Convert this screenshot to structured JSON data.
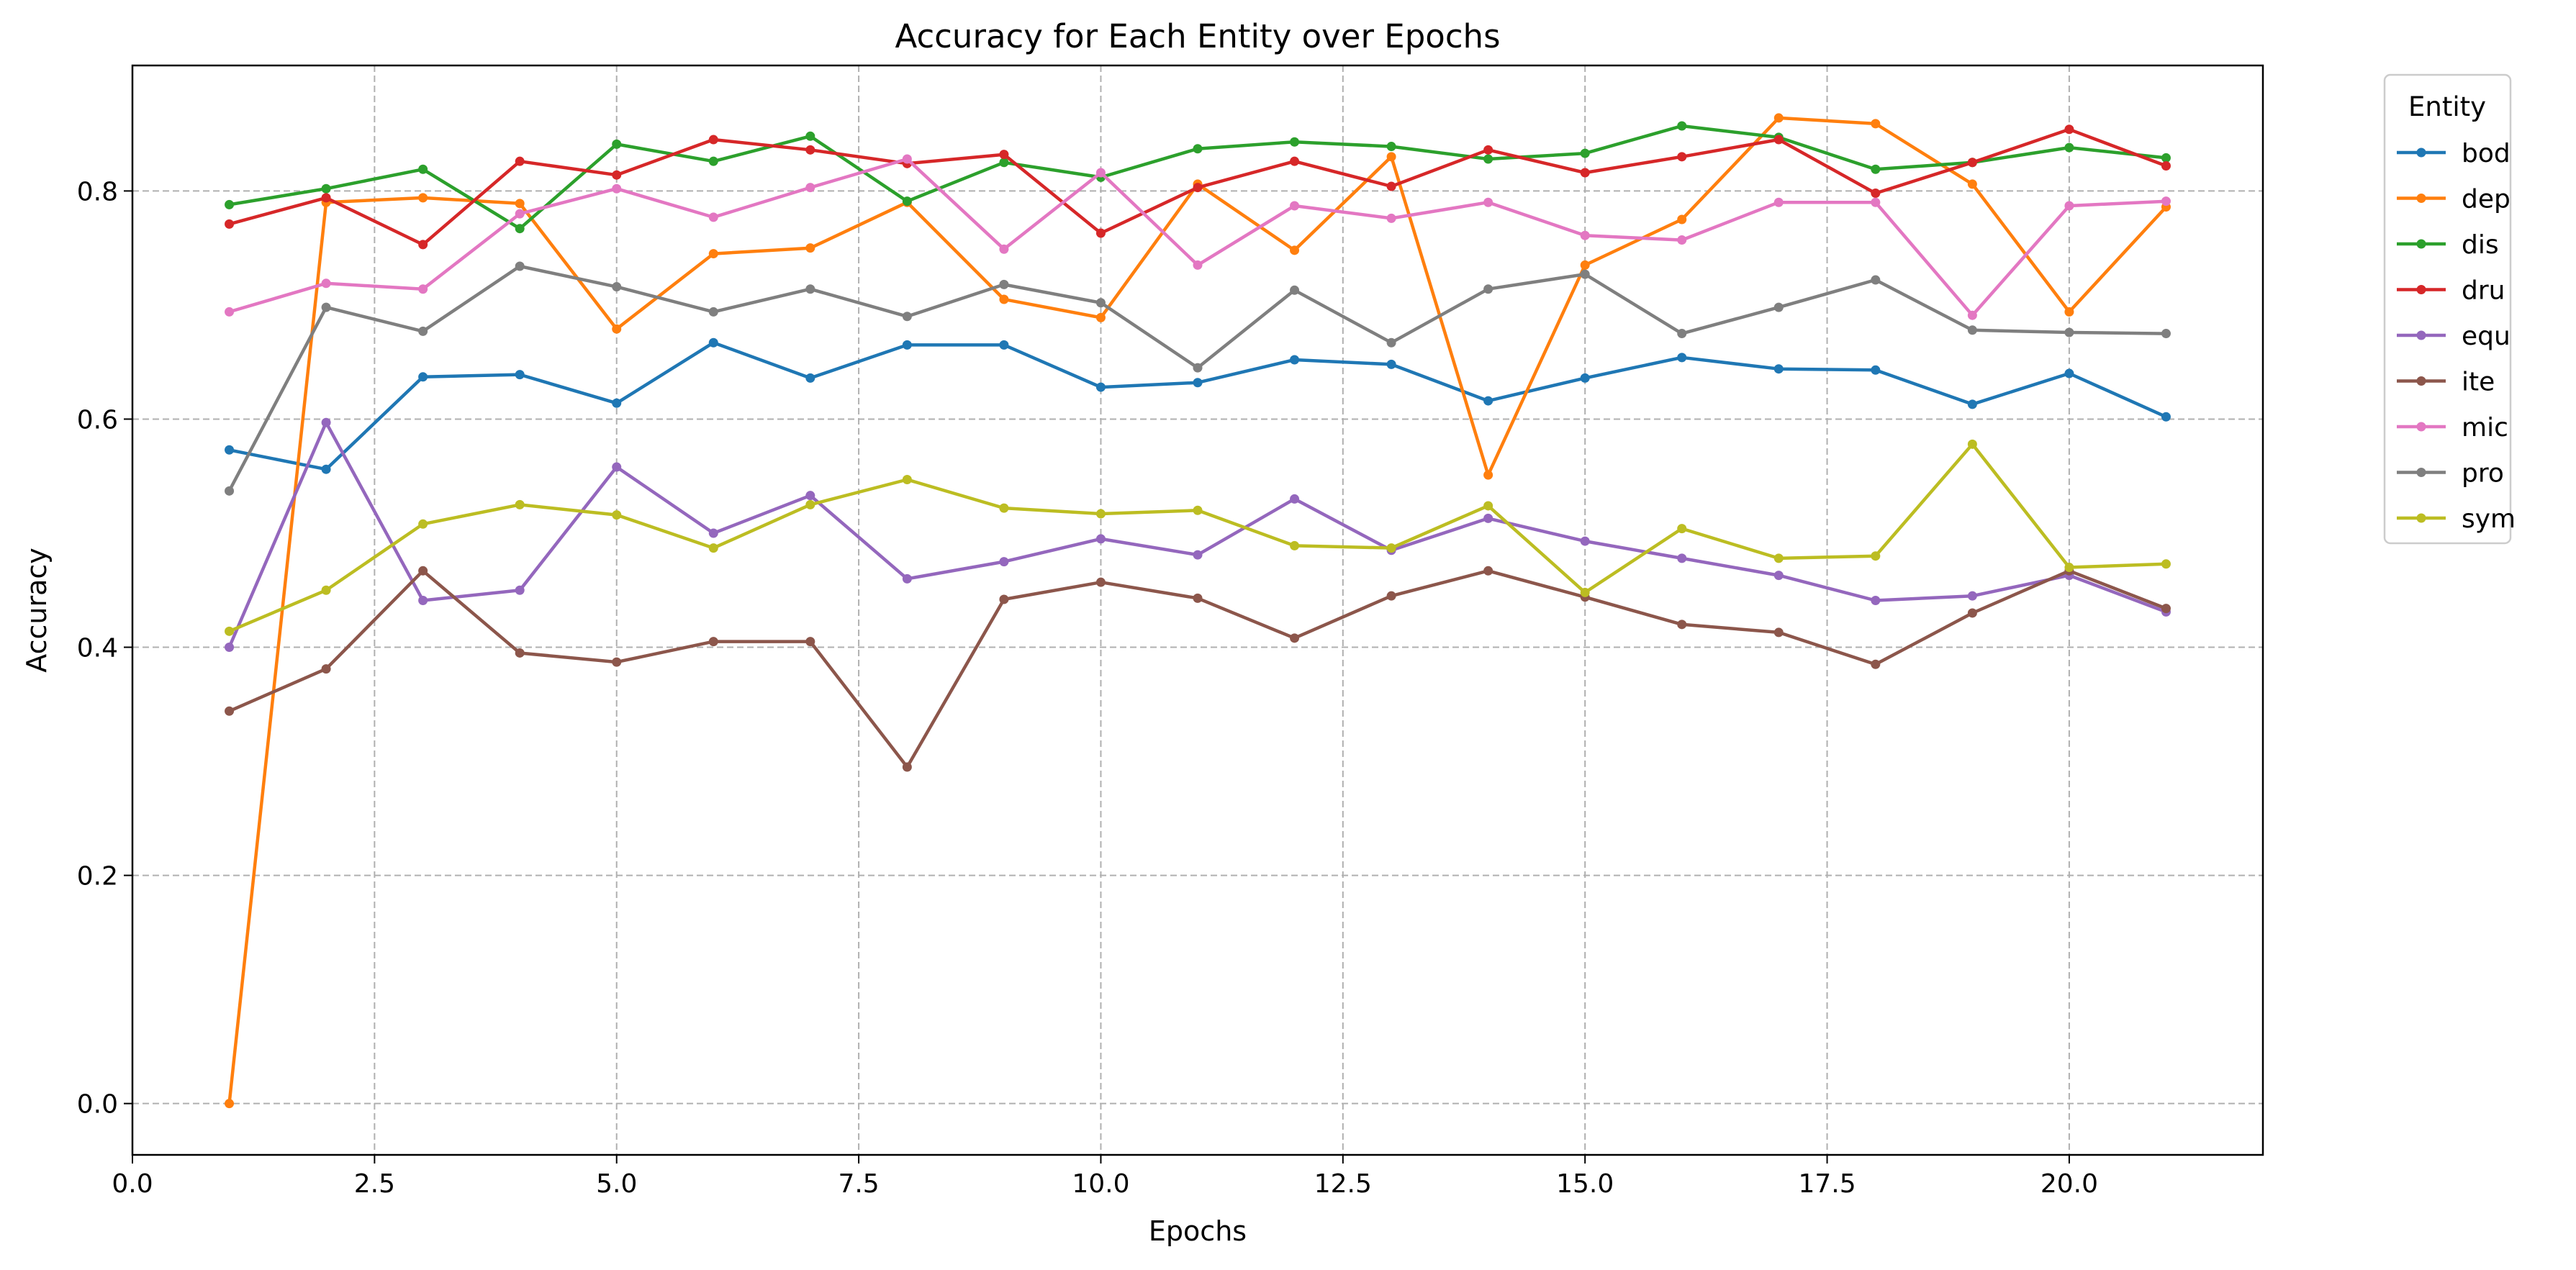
{
  "chart_data": {
    "type": "line",
    "title": "Accuracy for Each Entity over Epochs",
    "xlabel": "Epochs",
    "ylabel": "Accuracy",
    "xlim": [
      0,
      22
    ],
    "ylim": [
      -0.045,
      0.91
    ],
    "xticks": [
      0.0,
      2.5,
      5.0,
      7.5,
      10.0,
      12.5,
      15.0,
      17.5,
      20.0
    ],
    "xtick_labels": [
      "0.0",
      "2.5",
      "5.0",
      "7.5",
      "10.0",
      "12.5",
      "15.0",
      "17.5",
      "20.0"
    ],
    "yticks": [
      0.0,
      0.2,
      0.4,
      0.6,
      0.8
    ],
    "ytick_labels": [
      "0.0",
      "0.2",
      "0.4",
      "0.6",
      "0.8"
    ],
    "grid": true,
    "legend": {
      "title": "Entity",
      "placement": "outside-right"
    },
    "x": [
      1,
      2,
      3,
      4,
      5,
      6,
      7,
      8,
      9,
      10,
      11,
      12,
      13,
      14,
      15,
      16,
      17,
      18,
      19,
      20,
      21
    ],
    "series": [
      {
        "name": "bod",
        "color": "#1f77b4",
        "values": [
          0.573,
          0.556,
          0.637,
          0.639,
          0.614,
          0.667,
          0.636,
          0.665,
          0.665,
          0.628,
          0.632,
          0.652,
          0.648,
          0.616,
          0.636,
          0.654,
          0.644,
          0.643,
          0.613,
          0.64,
          0.602
        ]
      },
      {
        "name": "dep",
        "color": "#ff7f0e",
        "values": [
          0.0,
          0.79,
          0.794,
          0.789,
          0.679,
          0.745,
          0.75,
          0.79,
          0.705,
          0.689,
          0.806,
          0.748,
          0.83,
          0.551,
          0.735,
          0.775,
          0.864,
          0.859,
          0.806,
          0.694,
          0.786
        ]
      },
      {
        "name": "dis",
        "color": "#2ca02c",
        "values": [
          0.788,
          0.802,
          0.819,
          0.767,
          0.841,
          0.826,
          0.848,
          0.791,
          0.825,
          0.812,
          0.837,
          0.843,
          0.839,
          0.828,
          0.833,
          0.857,
          0.847,
          0.819,
          0.825,
          0.838,
          0.829
        ]
      },
      {
        "name": "dru",
        "color": "#d62728",
        "values": [
          0.771,
          0.794,
          0.753,
          0.826,
          0.814,
          0.845,
          0.836,
          0.824,
          0.832,
          0.763,
          0.803,
          0.826,
          0.804,
          0.836,
          0.816,
          0.83,
          0.845,
          0.798,
          0.825,
          0.854,
          0.822
        ]
      },
      {
        "name": "equ",
        "color": "#9467bd",
        "values": [
          0.4,
          0.597,
          0.441,
          0.45,
          0.558,
          0.5,
          0.533,
          0.46,
          0.475,
          0.495,
          0.481,
          0.53,
          0.485,
          0.513,
          0.493,
          0.478,
          0.463,
          0.441,
          0.445,
          0.463,
          0.431
        ]
      },
      {
        "name": "ite",
        "color": "#8c564b",
        "values": [
          0.344,
          0.381,
          0.467,
          0.395,
          0.387,
          0.405,
          0.405,
          0.295,
          0.442,
          0.457,
          0.443,
          0.408,
          0.445,
          0.467,
          0.444,
          0.42,
          0.413,
          0.385,
          0.43,
          0.467,
          0.434
        ]
      },
      {
        "name": "mic",
        "color": "#e377c2",
        "values": [
          0.694,
          0.719,
          0.714,
          0.78,
          0.802,
          0.777,
          0.803,
          0.828,
          0.749,
          0.816,
          0.735,
          0.787,
          0.776,
          0.79,
          0.761,
          0.757,
          0.79,
          0.79,
          0.691,
          0.787,
          0.791
        ]
      },
      {
        "name": "pro",
        "color": "#7f7f7f",
        "values": [
          0.537,
          0.698,
          0.677,
          0.734,
          0.716,
          0.694,
          0.714,
          0.69,
          0.718,
          0.702,
          0.645,
          0.713,
          0.667,
          0.714,
          0.727,
          0.675,
          0.698,
          0.722,
          0.678,
          0.676,
          0.675
        ]
      },
      {
        "name": "sym",
        "color": "#bcbd22",
        "values": [
          0.414,
          0.45,
          0.508,
          0.525,
          0.516,
          0.487,
          0.525,
          0.547,
          0.522,
          0.517,
          0.52,
          0.489,
          0.487,
          0.524,
          0.448,
          0.504,
          0.478,
          0.48,
          0.578,
          0.47,
          0.473
        ]
      }
    ]
  }
}
